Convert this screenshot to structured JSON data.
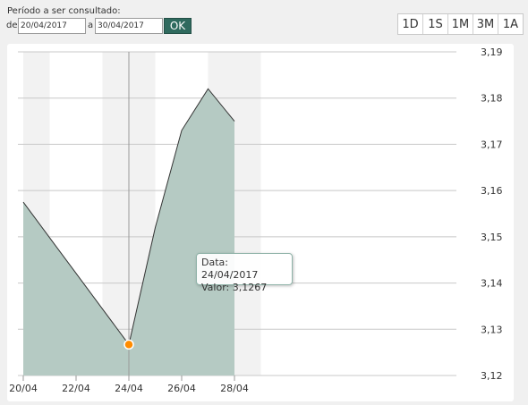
{
  "period": {
    "label": "Período a ser consultado:",
    "from_label": "de",
    "from_value": "20/04/2017",
    "to_label": "a",
    "to_value": "30/04/2017",
    "ok_label": "OK"
  },
  "ranges": [
    "1D",
    "1S",
    "1M",
    "3M",
    "1A"
  ],
  "tooltip": {
    "date_label": "Data:",
    "date_value": "24/04/2017",
    "value_label": "Valor:",
    "value_value": "3,1267"
  },
  "colors": {
    "area_fill": "#b5cac3",
    "line": "#333333",
    "marker": "#ff8c00",
    "ok_button": "#2f6a5e"
  },
  "chart_data": {
    "type": "area",
    "x": [
      "20/04",
      "21/04",
      "22/04",
      "23/04",
      "24/04",
      "25/04",
      "26/04",
      "27/04",
      "28/04"
    ],
    "values": [
      3.1575,
      3.1498,
      3.1421,
      3.1344,
      3.1267,
      3.152,
      3.173,
      3.182,
      3.175
    ],
    "xticks": [
      "20/04",
      "22/04",
      "24/04",
      "26/04",
      "28/04"
    ],
    "yticks": [
      "3,12",
      "3,13",
      "3,14",
      "3,15",
      "3,16",
      "3,17",
      "3,18",
      "3,19"
    ],
    "ylim": [
      3.12,
      3.19
    ],
    "highlight_index": 4,
    "grid": true
  }
}
